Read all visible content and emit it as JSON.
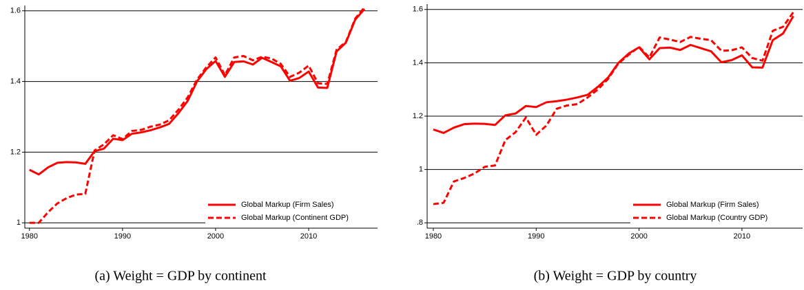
{
  "chart_data": [
    {
      "type": "line",
      "caption": "(a) Weight = GDP by continent",
      "x": [
        1980,
        1981,
        1982,
        1983,
        1984,
        1985,
        1986,
        1987,
        1988,
        1989,
        1990,
        1991,
        1992,
        1993,
        1994,
        1995,
        1996,
        1997,
        1998,
        1999,
        2000,
        2001,
        2002,
        2003,
        2004,
        2005,
        2006,
        2007,
        2008,
        2009,
        2010,
        2011,
        2012,
        2013,
        2014,
        2015,
        2016
      ],
      "series": [
        {
          "name": "Global Markup (Firm Sales)",
          "color": "#ff0000",
          "dash": false,
          "values": [
            1.15,
            1.137,
            1.157,
            1.17,
            1.172,
            1.171,
            1.167,
            1.203,
            1.21,
            1.238,
            1.234,
            1.252,
            1.256,
            1.262,
            1.27,
            1.28,
            1.31,
            1.345,
            1.4,
            1.435,
            1.458,
            1.413,
            1.455,
            1.457,
            1.448,
            1.467,
            1.455,
            1.443,
            1.402,
            1.41,
            1.428,
            1.383,
            1.382,
            1.485,
            1.51,
            1.575,
            1.605
          ]
        },
        {
          "name": "Global Markup (Continent GDP)",
          "color": "#ff0000",
          "dash": true,
          "values": [
            1.0,
            1.0,
            1.03,
            1.055,
            1.07,
            1.08,
            1.082,
            1.205,
            1.222,
            1.248,
            1.237,
            1.26,
            1.263,
            1.272,
            1.278,
            1.29,
            1.32,
            1.355,
            1.405,
            1.44,
            1.468,
            1.418,
            1.468,
            1.472,
            1.46,
            1.47,
            1.465,
            1.45,
            1.413,
            1.425,
            1.445,
            1.395,
            1.393,
            1.49,
            1.512,
            1.578,
            1.61
          ]
        }
      ],
      "xlim": [
        1979.5,
        2017.4
      ],
      "xticks": [
        1980,
        1990,
        2000,
        2010
      ],
      "ylim": [
        0.985,
        1.615
      ],
      "yticks": [
        1,
        1.2,
        1.4,
        1.6
      ],
      "grid": true,
      "legend": "lower right"
    },
    {
      "type": "line",
      "caption": "(b) Weight = GDP by country",
      "x": [
        1980,
        1981,
        1982,
        1983,
        1984,
        1985,
        1986,
        1987,
        1988,
        1989,
        1990,
        1991,
        1992,
        1993,
        1994,
        1995,
        1996,
        1997,
        1998,
        1999,
        2000,
        2001,
        2002,
        2003,
        2004,
        2005,
        2006,
        2007,
        2008,
        2009,
        2010,
        2011,
        2012,
        2013,
        2014,
        2015
      ],
      "series": [
        {
          "name": "Global Markup (Firm Sales)",
          "color": "#ff0000",
          "dash": false,
          "values": [
            1.15,
            1.137,
            1.157,
            1.17,
            1.172,
            1.171,
            1.167,
            1.203,
            1.21,
            1.238,
            1.234,
            1.252,
            1.256,
            1.262,
            1.27,
            1.28,
            1.31,
            1.345,
            1.4,
            1.435,
            1.458,
            1.413,
            1.455,
            1.457,
            1.448,
            1.467,
            1.455,
            1.443,
            1.402,
            1.41,
            1.428,
            1.383,
            1.382,
            1.485,
            1.51,
            1.575
          ]
        },
        {
          "name": "Global Markup (Country GDP)",
          "color": "#ff0000",
          "dash": true,
          "values": [
            0.87,
            0.875,
            0.955,
            0.968,
            0.985,
            1.01,
            1.015,
            1.11,
            1.14,
            1.195,
            1.13,
            1.165,
            1.228,
            1.24,
            1.245,
            1.27,
            1.3,
            1.34,
            1.398,
            1.43,
            1.46,
            1.42,
            1.495,
            1.487,
            1.478,
            1.497,
            1.49,
            1.485,
            1.445,
            1.447,
            1.458,
            1.418,
            1.408,
            1.52,
            1.535,
            1.59
          ]
        }
      ],
      "xlim": [
        1979.4,
        2015.9
      ],
      "xticks": [
        1980,
        1990,
        2000,
        2010
      ],
      "ylim": [
        0.78,
        1.62
      ],
      "yticks": [
        {
          "value": 0.8,
          "label": ".8"
        },
        1,
        1.2,
        1.4,
        1.6
      ],
      "grid": true,
      "legend": "lower right"
    }
  ]
}
